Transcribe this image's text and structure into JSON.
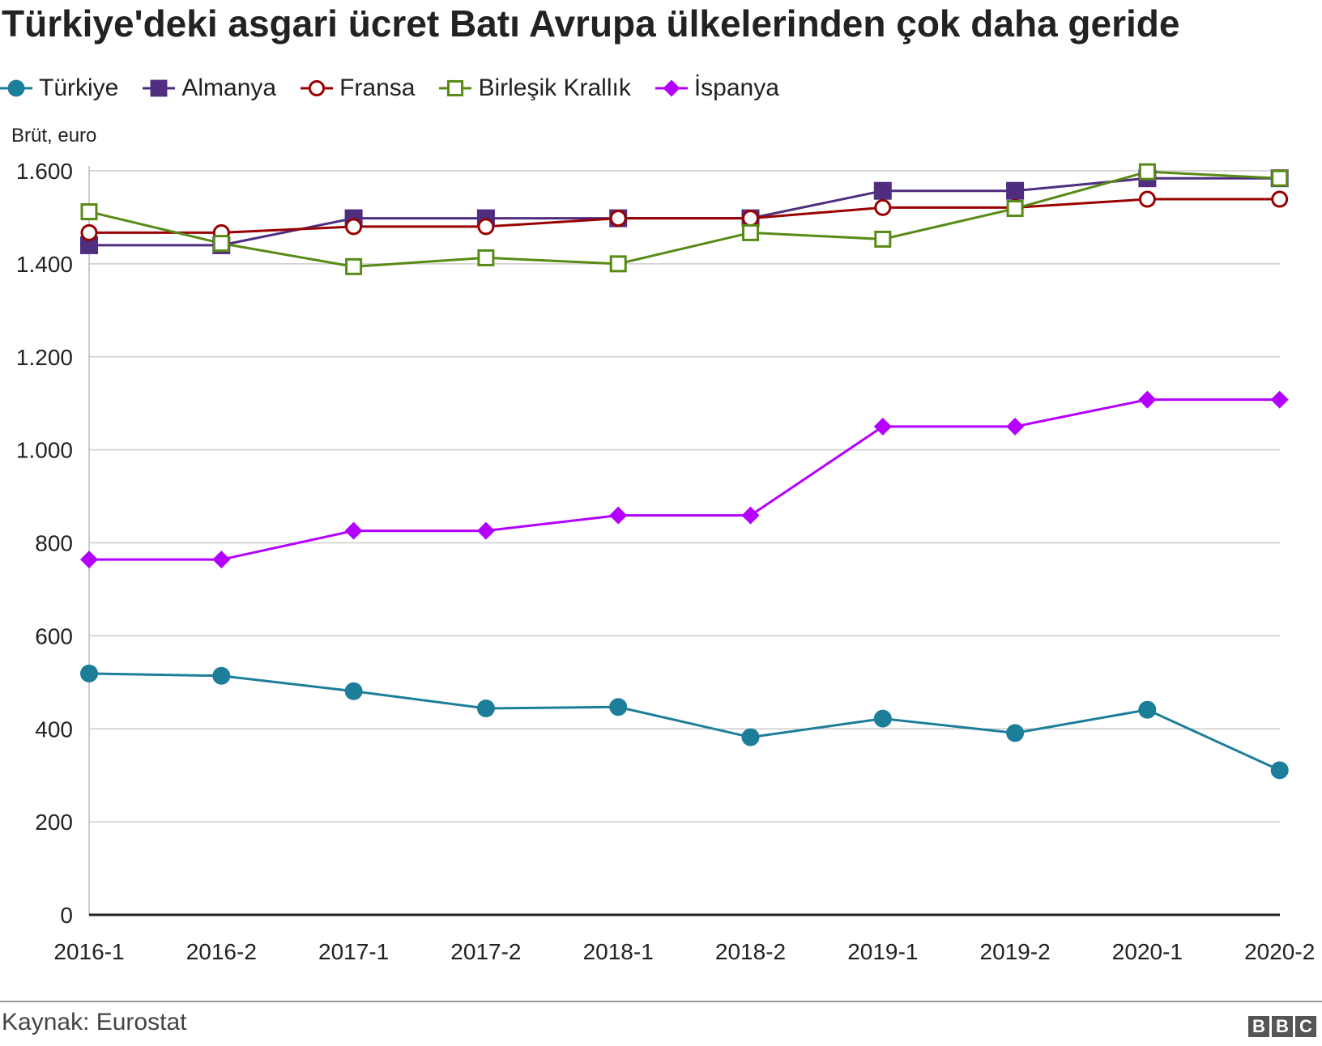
{
  "title": "Türkiye'deki asgari ücret Batı Avrupa ülkelerinden çok daha geride",
  "unit_label": "Brüt, euro",
  "source": "Kaynak: Eurostat",
  "logo": {
    "letters": [
      "B",
      "B",
      "C"
    ]
  },
  "chart_data": {
    "type": "line",
    "categories": [
      "2016-1",
      "2016-2",
      "2017-1",
      "2017-2",
      "2018-1",
      "2018-2",
      "2019-1",
      "2019-2",
      "2020-1",
      "2020-2"
    ],
    "y_ticks": [
      0,
      200,
      400,
      600,
      800,
      1000,
      1200,
      1400,
      1600
    ],
    "y_tick_labels": [
      "0",
      "200",
      "400",
      "600",
      "800",
      "1.000",
      "1.200",
      "1.400",
      "1.600"
    ],
    "ylim": [
      0,
      1600
    ],
    "grid": true,
    "legend_position": "top",
    "series": [
      {
        "name": "Türkiye",
        "color": "#1d7e99",
        "marker": "circle-filled",
        "values": [
          519,
          514,
          481,
          444,
          447,
          382,
          422,
          391,
          441,
          311
        ]
      },
      {
        "name": "Almanya",
        "color": "#4f2d7f",
        "marker": "square-filled",
        "values": [
          1440,
          1440,
          1498,
          1498,
          1498,
          1498,
          1557,
          1557,
          1584,
          1584
        ]
      },
      {
        "name": "Fransa",
        "color": "#990000",
        "marker": "circle-open",
        "values": [
          1467,
          1467,
          1480,
          1480,
          1498,
          1498,
          1521,
          1521,
          1539,
          1539
        ]
      },
      {
        "name": "Birleşik Krallık",
        "color": "#588a16",
        "marker": "square-open",
        "values": [
          1512,
          1444,
          1394,
          1413,
          1400,
          1467,
          1453,
          1519,
          1598,
          1584
        ]
      },
      {
        "name": "İspanya",
        "color": "#b300ff",
        "marker": "diamond-filled",
        "values": [
          764,
          764,
          826,
          826,
          859,
          859,
          1050,
          1050,
          1108,
          1108
        ]
      }
    ]
  }
}
